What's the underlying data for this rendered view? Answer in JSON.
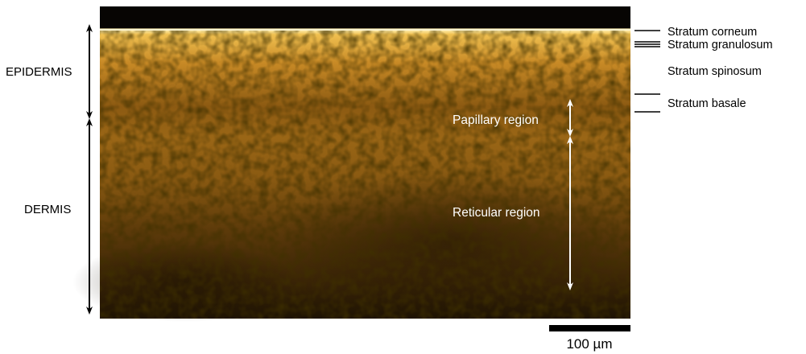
{
  "regions": {
    "epidermis": "EPIDERMIS",
    "dermis": "DERMIS"
  },
  "layers": {
    "corneum": "Stratum corneum",
    "granulosum": "Stratum granulosum",
    "spinosum": "Stratum spinosum",
    "basale": "Stratum basale"
  },
  "inner_labels": {
    "papillary": "Papillary region",
    "reticular": "Reticular region"
  },
  "scale_bar": {
    "label": "100 µm"
  },
  "colors": {
    "tissue_bright": "#e8b540",
    "tissue_mid": "#9a6414",
    "tissue_dark": "#2a1a04",
    "background_black": "#050403",
    "arrow_black": "#000000",
    "arrow_white": "#ffffff"
  }
}
